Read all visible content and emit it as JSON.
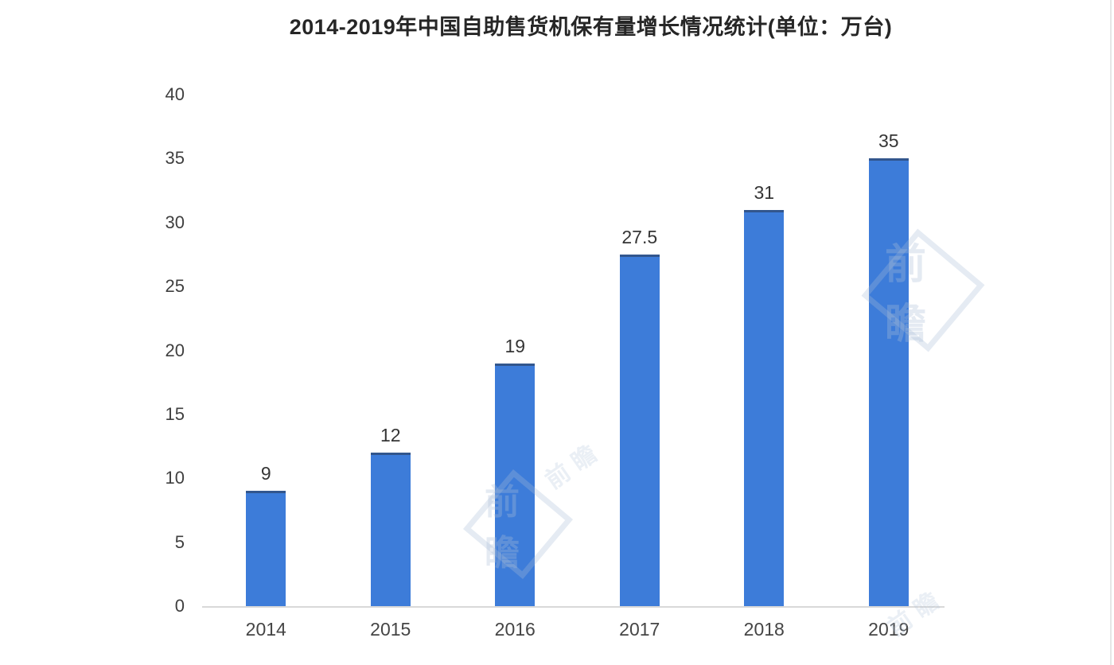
{
  "chart_data": {
    "type": "bar",
    "title": "2014-2019年中国自助售货机保有量增长情况统计(单位：万台)",
    "categories": [
      "2014",
      "2015",
      "2016",
      "2017",
      "2018",
      "2019"
    ],
    "values": [
      9,
      12,
      19,
      27.5,
      31,
      35
    ],
    "value_labels": [
      "9",
      "12",
      "19",
      "27.5",
      "31",
      "35"
    ],
    "unit": "万台",
    "ylim": [
      0,
      40
    ],
    "yticks": [
      0,
      5,
      10,
      15,
      20,
      25,
      30,
      35,
      40
    ],
    "grid": false,
    "legend": false,
    "bar_color": "#3d7cd9",
    "bar_top_edge_color": "rgba(40, 48, 66, 0.5)",
    "axis_line_color": "#d9d9d9",
    "label_color": "#3f3f3f",
    "title_color": "#262626",
    "background_color": "#ffffff"
  },
  "watermarks": [
    {
      "text": "前瞻"
    },
    {
      "text": "前瞻"
    },
    {
      "text": "前瞻"
    }
  ]
}
